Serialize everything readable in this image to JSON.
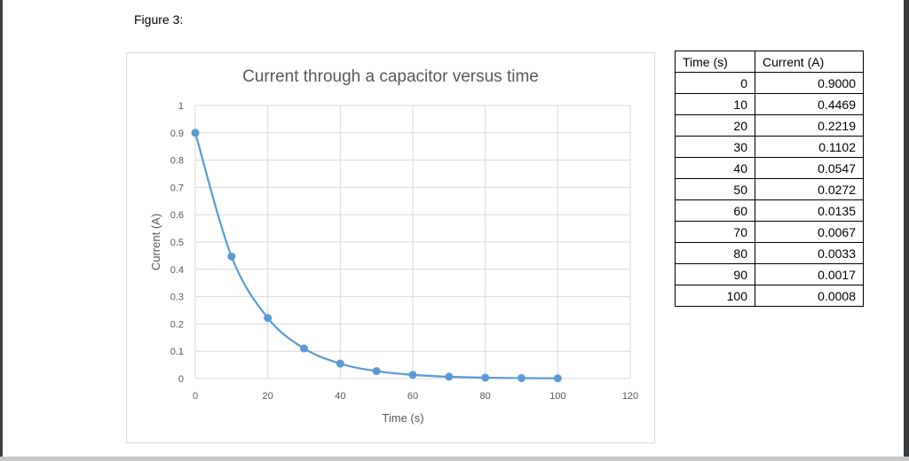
{
  "figure_label": "Figure 3:",
  "chart_data": {
    "type": "scatter",
    "title": "Current through a capacitor versus time",
    "xlabel": "Time (s)",
    "ylabel": "Current (A)",
    "xlim": [
      0,
      120
    ],
    "ylim": [
      0,
      1
    ],
    "xticks": [
      "0",
      "20",
      "40",
      "60",
      "80",
      "100",
      "120"
    ],
    "yticks": [
      "0",
      "0.1",
      "0.2",
      "0.3",
      "0.4",
      "0.5",
      "0.6",
      "0.7",
      "0.8",
      "0.9",
      "1"
    ],
    "grid": true,
    "smooth_line": true,
    "color": "#5b9bd5",
    "x": [
      0,
      10,
      20,
      30,
      40,
      50,
      60,
      70,
      80,
      90,
      100
    ],
    "y": [
      0.9,
      0.4469,
      0.2219,
      0.1102,
      0.0547,
      0.0272,
      0.0135,
      0.0067,
      0.0033,
      0.0017,
      0.0008
    ]
  },
  "table": {
    "headers": [
      "Time (s)",
      "Current (A)"
    ],
    "rows": [
      [
        "0",
        "0.9000"
      ],
      [
        "10",
        "0.4469"
      ],
      [
        "20",
        "0.2219"
      ],
      [
        "30",
        "0.1102"
      ],
      [
        "40",
        "0.0547"
      ],
      [
        "50",
        "0.0272"
      ],
      [
        "60",
        "0.0135"
      ],
      [
        "70",
        "0.0067"
      ],
      [
        "80",
        "0.0033"
      ],
      [
        "90",
        "0.0017"
      ],
      [
        "100",
        "0.0008"
      ]
    ]
  }
}
